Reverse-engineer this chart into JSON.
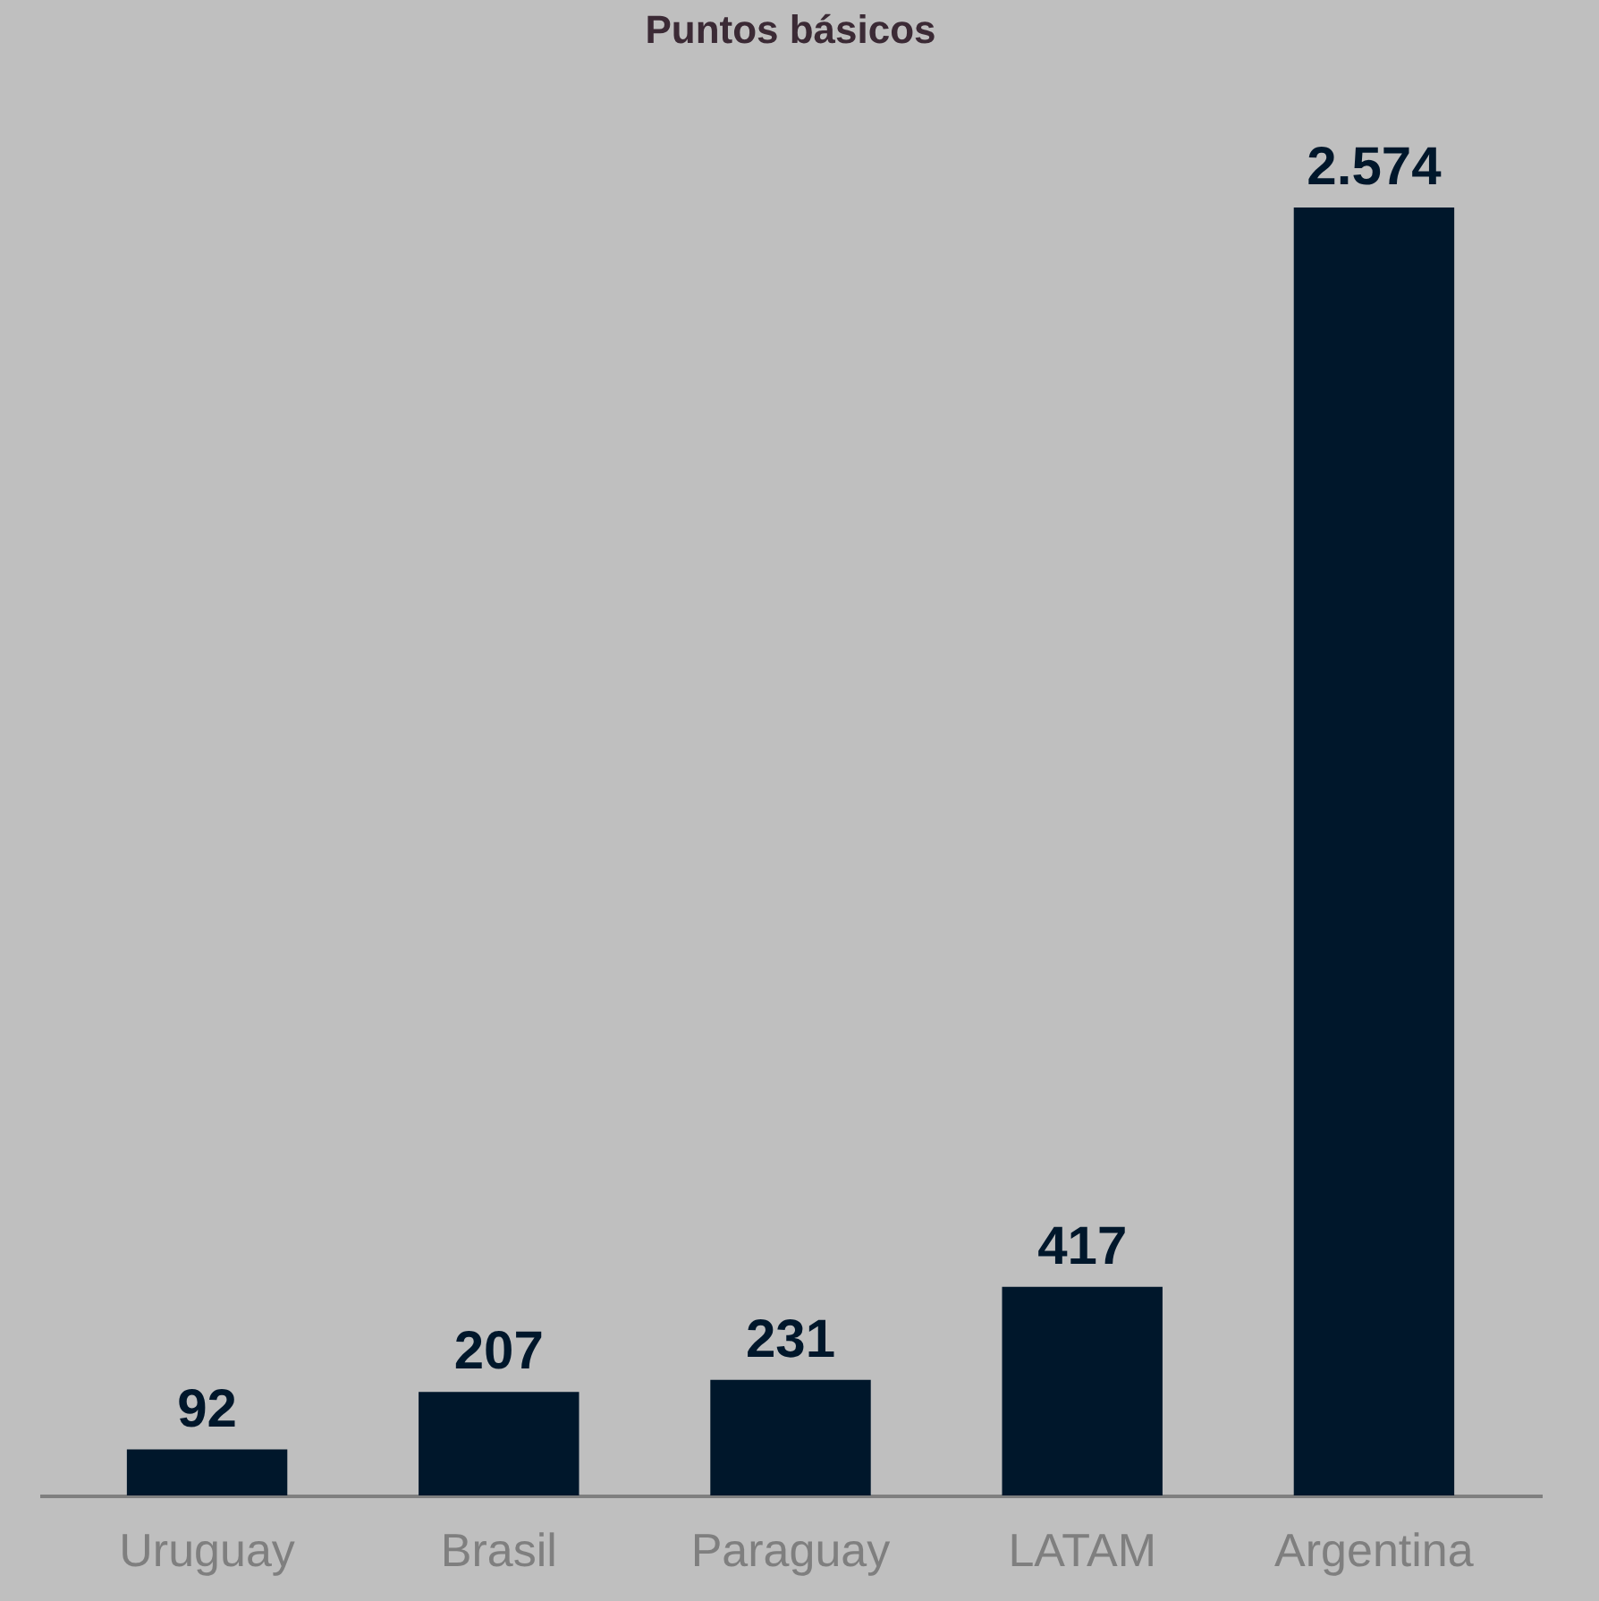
{
  "chart_data": {
    "type": "bar",
    "title": "Puntos básicos",
    "categories": [
      "Uruguay",
      "Brasil",
      "Paraguay",
      "LATAM",
      "Argentina"
    ],
    "values": [
      92,
      207,
      231,
      417,
      2574
    ],
    "value_labels": [
      "92",
      "207",
      "231",
      "417",
      "2.574"
    ],
    "color": "#00172b"
  }
}
